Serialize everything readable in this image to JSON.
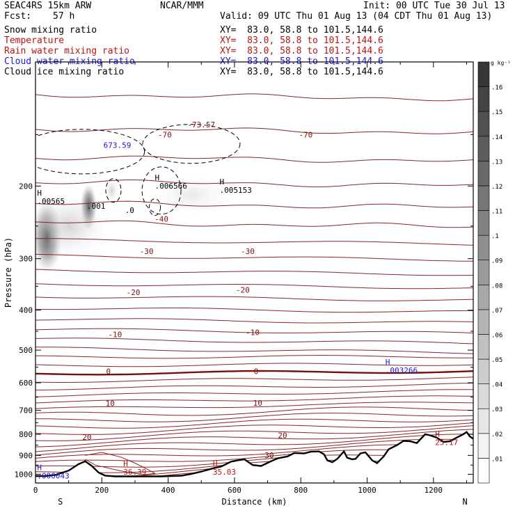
{
  "header": {
    "model": "SEAC4RS 15km ARW",
    "center": "NCAR/MMM",
    "init": "Init: 00 UTC Tue 30 Jul 13",
    "fcst_label": "Fcst:",
    "fcst_value": "57 h",
    "valid": "Valid: 09 UTC Thu 01 Aug 13 (04 CDT Thu 01 Aug 13)",
    "fields": [
      {
        "name": "Snow mixing ratio",
        "xy": "XY=  83.0, 58.8 to 101.5,144.6",
        "color": "#000000"
      },
      {
        "name": "Temperature",
        "xy": "XY=  83.0, 58.8 to 101.5,144.6",
        "color": "#b81414"
      },
      {
        "name": "Rain water mixing ratio",
        "xy": "XY=  83.0, 58.8 to 101.5,144.6",
        "color": "#b81414"
      },
      {
        "name": "Cloud water mixing ratio",
        "xy": "XY=  83.0, 58.8 to 101.5,144.6",
        "color": "#1a1ad0"
      },
      {
        "name": "Cloud ice mixing ratio",
        "xy": "XY=  83.0, 58.8 to 101.5,144.6",
        "color": "#000000"
      }
    ]
  },
  "chart_data": {
    "type": "cross-section",
    "xlabel": "Distance (km)",
    "ylabel": "Pressure (hPa)",
    "xlim": [
      0,
      1320
    ],
    "ylim": [
      1050,
      100
    ],
    "y_scale": "log",
    "x_ticks": [
      0,
      200,
      400,
      600,
      800,
      1000,
      1200
    ],
    "y_ticks": [
      200,
      300,
      400,
      500,
      600,
      700,
      800,
      900,
      1000
    ],
    "endpoints": {
      "left": "S",
      "right": "N"
    },
    "colorbar": {
      "unit": "g kg⁻¹",
      "labels": [
        ".01",
        ".02",
        ".03",
        ".04",
        ".05",
        ".06",
        ".07",
        ".08",
        ".09",
        ".1",
        ".11",
        ".12",
        ".13",
        ".14",
        ".15",
        ".16"
      ]
    },
    "temperature_labels": [
      {
        "text": "-70",
        "x": 390,
        "p": 150
      },
      {
        "text": "-73.57",
        "x": 500,
        "p": 142
      },
      {
        "text": "-70",
        "x": 815,
        "p": 150
      },
      {
        "text": "-40",
        "x": 380,
        "p": 240
      },
      {
        "text": "-30",
        "x": 335,
        "p": 288
      },
      {
        "text": "-30",
        "x": 640,
        "p": 288
      },
      {
        "text": "-20",
        "x": 295,
        "p": 362
      },
      {
        "text": "-20",
        "x": 625,
        "p": 357
      },
      {
        "text": "-10",
        "x": 240,
        "p": 458
      },
      {
        "text": "-10",
        "x": 655,
        "p": 453
      },
      {
        "text": "0",
        "x": 220,
        "p": 563
      },
      {
        "text": "0",
        "x": 665,
        "p": 563
      },
      {
        "text": "10",
        "x": 225,
        "p": 673
      },
      {
        "text": "10",
        "x": 670,
        "p": 672
      },
      {
        "text": "20",
        "x": 155,
        "p": 812
      },
      {
        "text": "20",
        "x": 745,
        "p": 805
      },
      {
        "text": "30",
        "x": 705,
        "p": 898
      }
    ],
    "maxima": [
      {
        "mark": "H",
        "value": "36.39",
        "x": 265,
        "p": 980,
        "color": "#b81414"
      },
      {
        "mark": "H",
        "value": "35.03",
        "x": 535,
        "p": 980,
        "color": "#b81414"
      },
      {
        "mark": "H",
        "value": "25.17",
        "x": 1205,
        "p": 830,
        "color": "#b81414"
      },
      {
        "mark": "H",
        "value": ".003266",
        "x": 1055,
        "p": 555,
        "color": "#1a1ad0"
      },
      {
        "mark": "H",
        "value": ".000043",
        "x": 5,
        "p": 1000,
        "color": "#1a1ad0"
      },
      {
        "mark": "H",
        "value": ".006566",
        "x": 360,
        "p": 198,
        "color": "#000000"
      },
      {
        "mark": "H",
        "value": ".005153",
        "x": 555,
        "p": 203,
        "color": "#000000"
      },
      {
        "mark": "H",
        "value": ".00565",
        "x": 5,
        "p": 216,
        "color": "#000000"
      },
      {
        "mark": "",
        "value": ".001",
        "x": 155,
        "p": 222,
        "color": "#000000"
      },
      {
        "mark": "",
        "value": ".0",
        "x": 270,
        "p": 227,
        "color": "#000000"
      },
      {
        "mark": "",
        "value": "673.59",
        "x": 205,
        "p": 158,
        "color": "#1a1ad0"
      }
    ],
    "terrain": [
      [
        0,
        1010
      ],
      [
        30,
        1010
      ],
      [
        60,
        1004
      ],
      [
        100,
        980
      ],
      [
        130,
        945
      ],
      [
        150,
        930
      ],
      [
        170,
        955
      ],
      [
        190,
        990
      ],
      [
        210,
        1008
      ],
      [
        240,
        1012
      ],
      [
        300,
        1012
      ],
      [
        380,
        1012
      ],
      [
        440,
        1008
      ],
      [
        470,
        998
      ],
      [
        500,
        985
      ],
      [
        540,
        965
      ],
      [
        560,
        958
      ],
      [
        590,
        932
      ],
      [
        610,
        925
      ],
      [
        630,
        920
      ],
      [
        655,
        950
      ],
      [
        680,
        955
      ],
      [
        710,
        930
      ],
      [
        730,
        915
      ],
      [
        760,
        905
      ],
      [
        780,
        888
      ],
      [
        810,
        890
      ],
      [
        830,
        882
      ],
      [
        855,
        880
      ],
      [
        870,
        895
      ],
      [
        880,
        925
      ],
      [
        895,
        935
      ],
      [
        910,
        918
      ],
      [
        930,
        880
      ],
      [
        940,
        912
      ],
      [
        955,
        920
      ],
      [
        965,
        918
      ],
      [
        980,
        890
      ],
      [
        995,
        885
      ],
      [
        1015,
        925
      ],
      [
        1030,
        940
      ],
      [
        1050,
        905
      ],
      [
        1065,
        870
      ],
      [
        1090,
        850
      ],
      [
        1110,
        830
      ],
      [
        1130,
        832
      ],
      [
        1150,
        840
      ],
      [
        1175,
        800
      ],
      [
        1190,
        805
      ],
      [
        1210,
        815
      ],
      [
        1230,
        835
      ],
      [
        1250,
        832
      ],
      [
        1270,
        815
      ],
      [
        1290,
        800
      ],
      [
        1300,
        790
      ],
      [
        1310,
        810
      ],
      [
        1320,
        820
      ]
    ]
  }
}
